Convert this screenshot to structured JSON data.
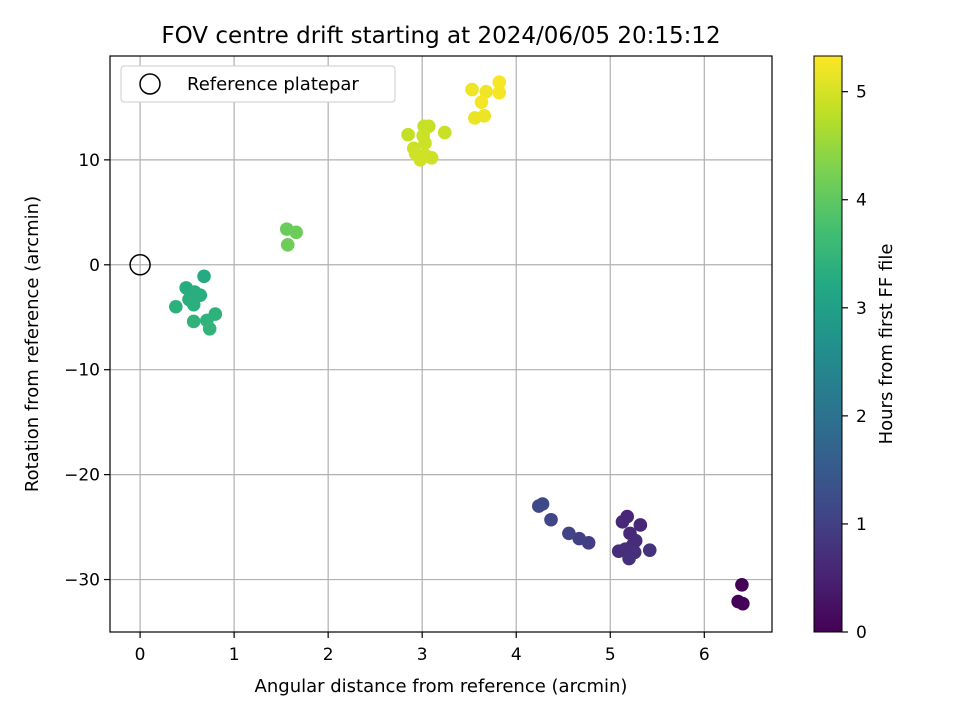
{
  "chart_data": {
    "type": "scatter",
    "title": "FOV centre drift starting at 2024/06/05 20:15:12",
    "xlabel": "Angular distance from reference (arcmin)",
    "ylabel": "Rotation from reference (arcmin)",
    "xlim": [
      -0.32,
      6.72
    ],
    "ylim": [
      -35.0,
      19.9
    ],
    "xticks": [
      0,
      1,
      2,
      3,
      4,
      5,
      6
    ],
    "xtick_labels": [
      "0",
      "1",
      "2",
      "3",
      "4",
      "5",
      "6"
    ],
    "yticks": [
      -30,
      -20,
      -10,
      0,
      10
    ],
    "ytick_labels": [
      "−30",
      "−20",
      "−10",
      "0",
      "10"
    ],
    "grid": true,
    "legend": {
      "position": "top-left",
      "entries": [
        "Reference platepar"
      ]
    },
    "reference_point": {
      "x": 0,
      "y": 0,
      "label": "Reference platepar"
    },
    "colorbar": {
      "label": "Hours from first FF file",
      "colormap": "viridis",
      "range": [
        0,
        5.33
      ],
      "ticks": [
        0,
        1,
        2,
        3,
        4,
        5
      ],
      "tick_labels": [
        "0",
        "1",
        "2",
        "3",
        "4",
        "5"
      ]
    },
    "points": [
      {
        "x": 6.4,
        "y": -30.5,
        "hours": 0.02
      },
      {
        "x": 6.36,
        "y": -32.1,
        "hours": 0.04
      },
      {
        "x": 6.41,
        "y": -32.3,
        "hours": 0.06
      },
      {
        "x": 5.18,
        "y": -24.0,
        "hours": 0.55
      },
      {
        "x": 5.13,
        "y": -24.5,
        "hours": 0.58
      },
      {
        "x": 5.32,
        "y": -24.8,
        "hours": 0.6
      },
      {
        "x": 5.21,
        "y": -25.6,
        "hours": 0.62
      },
      {
        "x": 5.27,
        "y": -26.3,
        "hours": 0.64
      },
      {
        "x": 5.24,
        "y": -26.7,
        "hours": 0.66
      },
      {
        "x": 5.09,
        "y": -27.3,
        "hours": 0.68
      },
      {
        "x": 5.16,
        "y": -27.1,
        "hours": 0.7
      },
      {
        "x": 5.26,
        "y": -27.4,
        "hours": 0.72
      },
      {
        "x": 5.2,
        "y": -28.0,
        "hours": 0.74
      },
      {
        "x": 5.42,
        "y": -27.2,
        "hours": 0.76
      },
      {
        "x": 4.77,
        "y": -26.5,
        "hours": 0.95
      },
      {
        "x": 4.67,
        "y": -26.1,
        "hours": 1.0
      },
      {
        "x": 4.56,
        "y": -25.6,
        "hours": 1.05
      },
      {
        "x": 4.37,
        "y": -24.3,
        "hours": 1.1
      },
      {
        "x": 4.24,
        "y": -23.0,
        "hours": 1.15
      },
      {
        "x": 4.28,
        "y": -22.8,
        "hours": 1.18
      },
      {
        "x": 0.68,
        "y": -1.1,
        "hours": 3.25
      },
      {
        "x": 0.49,
        "y": -2.2,
        "hours": 3.28
      },
      {
        "x": 0.58,
        "y": -2.6,
        "hours": 3.3
      },
      {
        "x": 0.64,
        "y": -2.9,
        "hours": 3.32
      },
      {
        "x": 0.52,
        "y": -3.3,
        "hours": 3.34
      },
      {
        "x": 0.57,
        "y": -3.8,
        "hours": 3.36
      },
      {
        "x": 0.38,
        "y": -4.0,
        "hours": 3.38
      },
      {
        "x": 0.8,
        "y": -4.7,
        "hours": 3.4
      },
      {
        "x": 0.71,
        "y": -5.3,
        "hours": 3.42
      },
      {
        "x": 0.57,
        "y": -5.4,
        "hours": 3.44
      },
      {
        "x": 0.74,
        "y": -6.1,
        "hours": 3.46
      },
      {
        "x": 1.56,
        "y": 3.4,
        "hours": 4.1
      },
      {
        "x": 1.66,
        "y": 3.1,
        "hours": 4.12
      },
      {
        "x": 1.57,
        "y": 1.9,
        "hours": 4.14
      },
      {
        "x": 2.85,
        "y": 12.4,
        "hours": 4.85
      },
      {
        "x": 3.02,
        "y": 13.2,
        "hours": 4.87
      },
      {
        "x": 3.07,
        "y": 13.2,
        "hours": 4.88
      },
      {
        "x": 3.24,
        "y": 12.6,
        "hours": 4.89
      },
      {
        "x": 3.01,
        "y": 12.3,
        "hours": 4.9
      },
      {
        "x": 3.03,
        "y": 11.6,
        "hours": 4.91
      },
      {
        "x": 2.91,
        "y": 11.1,
        "hours": 4.92
      },
      {
        "x": 2.93,
        "y": 10.6,
        "hours": 4.93
      },
      {
        "x": 3.04,
        "y": 10.4,
        "hours": 4.94
      },
      {
        "x": 3.1,
        "y": 10.2,
        "hours": 4.95
      },
      {
        "x": 2.98,
        "y": 10.0,
        "hours": 4.96
      },
      {
        "x": 3.53,
        "y": 16.7,
        "hours": 5.2
      },
      {
        "x": 3.68,
        "y": 16.5,
        "hours": 5.22
      },
      {
        "x": 3.82,
        "y": 17.4,
        "hours": 5.28
      },
      {
        "x": 3.82,
        "y": 16.4,
        "hours": 5.26
      },
      {
        "x": 3.63,
        "y": 15.5,
        "hours": 5.24
      },
      {
        "x": 3.66,
        "y": 14.2,
        "hours": 5.18
      },
      {
        "x": 3.56,
        "y": 14.0,
        "hours": 5.16
      }
    ]
  }
}
